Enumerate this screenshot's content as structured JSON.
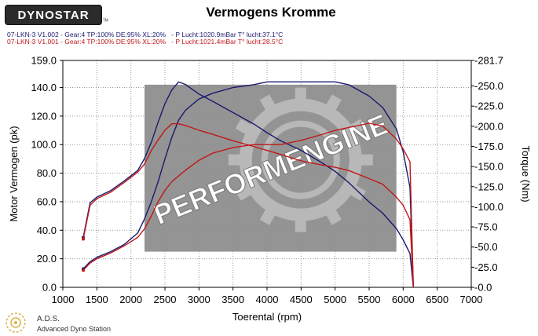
{
  "brand": {
    "logo_text": "DYNOSTAR",
    "mark": "ᵀᴹ"
  },
  "runs": [
    {
      "label": "07-LKN-3 V1.002 - Gear:4 TP:100% DE:95% XL:20%   - P Lucht:1020.9mBar T° lucht:37.1°C",
      "color": "#1a1a6e"
    },
    {
      "label": "07-LKN-3 V1.001 - Gear:4 TP:100% DE:95% XL:20%   - P Lucht:1021.4mBar T° lucht:28.5°C",
      "color": "#c01818"
    }
  ],
  "watermark": {
    "text": "PERFORMENGINE"
  },
  "footer": {
    "abbr": "A.D.S.",
    "full": "Advanced Dyno Station"
  },
  "chart_data": {
    "type": "line",
    "title": "Vermogens Kromme",
    "xlabel": "Toerental (rpm)",
    "ylabel": "Motor Vermogen (pk)",
    "y2label": "Torque (Nm)",
    "xlim": [
      1000,
      7000
    ],
    "ylim": [
      0,
      159
    ],
    "y2lim": [
      0,
      281.7
    ],
    "x_ticks": [
      "1000",
      "1500",
      "2000",
      "2500",
      "3000",
      "3500",
      "4000",
      "4500",
      "5000",
      "5500",
      "6000",
      "6500",
      "7000"
    ],
    "y_ticks": [
      "0.0",
      "20.0",
      "40.0",
      "60.0",
      "80.0",
      "100.0",
      "120.0",
      "140.0",
      "159.0"
    ],
    "y2_ticks": [
      "-0.0",
      "-25.0",
      "-50.0",
      "-75.0",
      "-100.0",
      "-125.0",
      "-150.0",
      "-175.0",
      "-200.0",
      "-225.0",
      "-250.0",
      "-281.7"
    ],
    "grid": true,
    "series": [
      {
        "name": "V1.002 Vermogen",
        "axis": "left",
        "color": "#1a1a6e",
        "x": [
          1300,
          1400,
          1500,
          1700,
          1900,
          2100,
          2200,
          2300,
          2400,
          2500,
          2600,
          2700,
          2800,
          3000,
          3200,
          3500,
          3800,
          4000,
          4200,
          4500,
          4800,
          5000,
          5200,
          5500,
          5700,
          5900,
          6000,
          6100,
          6150
        ],
        "y": [
          13,
          18,
          21,
          25,
          30,
          38,
          48,
          60,
          74,
          90,
          105,
          117,
          124,
          132,
          136,
          140,
          142,
          144,
          144,
          144,
          144,
          144,
          142,
          134,
          126,
          111,
          95,
          70,
          0
        ]
      },
      {
        "name": "V1.002 Torque",
        "axis": "right",
        "color": "#1a1a6e",
        "x": [
          1300,
          1400,
          1500,
          1700,
          1900,
          2100,
          2200,
          2300,
          2400,
          2500,
          2600,
          2700,
          2800,
          3000,
          3200,
          3500,
          3800,
          4000,
          4200,
          4500,
          4800,
          5000,
          5200,
          5500,
          5700,
          5900,
          6000,
          6100,
          6150
        ],
        "y": [
          62,
          105,
          112,
          120,
          132,
          145,
          160,
          180,
          205,
          228,
          245,
          255,
          252,
          240,
          231,
          217,
          203,
          192,
          182,
          170,
          155,
          144,
          130,
          106,
          92,
          73,
          59,
          42,
          0
        ]
      },
      {
        "name": "V1.001 Vermogen",
        "axis": "left",
        "color": "#c01818",
        "x": [
          1300,
          1400,
          1500,
          1700,
          1900,
          2100,
          2200,
          2300,
          2400,
          2500,
          2600,
          2700,
          2800,
          3000,
          3200,
          3500,
          3800,
          4000,
          4200,
          4500,
          4800,
          5000,
          5200,
          5500,
          5700,
          5900,
          6000,
          6100,
          6150
        ],
        "y": [
          12,
          17,
          20,
          24,
          29,
          35,
          41,
          50,
          60,
          68,
          74,
          78,
          82,
          89,
          94,
          98,
          100,
          100,
          100,
          103,
          107,
          110,
          112,
          115,
          113,
          104,
          97,
          88,
          0
        ]
      },
      {
        "name": "V1.001 Torque",
        "axis": "right",
        "color": "#c01818",
        "x": [
          1300,
          1400,
          1500,
          1700,
          1900,
          2100,
          2200,
          2300,
          2400,
          2500,
          2600,
          2700,
          2800,
          3000,
          3200,
          3500,
          3800,
          4000,
          4200,
          4500,
          4800,
          5000,
          5200,
          5500,
          5700,
          5900,
          6000,
          6100,
          6150
        ],
        "y": [
          60,
          102,
          110,
          118,
          130,
          143,
          153,
          170,
          183,
          195,
          203,
          203,
          201,
          195,
          190,
          182,
          175,
          170,
          165,
          157,
          152,
          149,
          145,
          135,
          128,
          112,
          102,
          84,
          0
        ]
      }
    ]
  }
}
